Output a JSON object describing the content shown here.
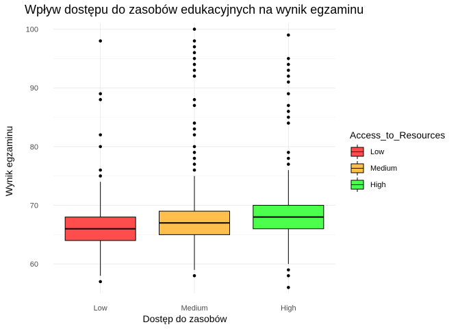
{
  "chart_data": {
    "type": "boxplot",
    "title": "Wpływ dostępu do zasobów edukacyjnych na wynik egzaminu",
    "xlabel": "Dostęp do zasobów",
    "ylabel": "Wynik egzaminu",
    "ylim": [
      55,
      101
    ],
    "yticks": [
      60,
      70,
      80,
      90,
      100
    ],
    "grid": true,
    "legend": {
      "title": "Access_to_Resources",
      "placement": "right",
      "entries": [
        "Low",
        "Medium",
        "High"
      ]
    },
    "categories": [
      "Low",
      "Medium",
      "High"
    ],
    "colors": [
      "#ff4d4d",
      "#ffbf4d",
      "#4dff4d"
    ],
    "boxes": [
      {
        "category": "Low",
        "whisker_low": 58,
        "q1": 64,
        "median": 66,
        "q3": 68,
        "whisker_high": 74,
        "outliers": [
          57,
          75,
          76,
          80,
          82,
          88,
          89,
          98
        ]
      },
      {
        "category": "Medium",
        "whisker_low": 59,
        "q1": 65,
        "median": 67,
        "q3": 69,
        "whisker_high": 75,
        "outliers": [
          58,
          76,
          77,
          78,
          79,
          80,
          82,
          83,
          84,
          87,
          88,
          92,
          93,
          94,
          95,
          96,
          97,
          98,
          100
        ]
      },
      {
        "category": "High",
        "whisker_low": 60,
        "q1": 66,
        "median": 68,
        "q3": 70,
        "whisker_high": 76,
        "outliers": [
          56,
          58,
          59,
          77,
          78,
          79,
          84,
          85,
          86,
          87,
          89,
          91,
          92,
          93,
          94,
          95,
          99
        ]
      }
    ]
  }
}
